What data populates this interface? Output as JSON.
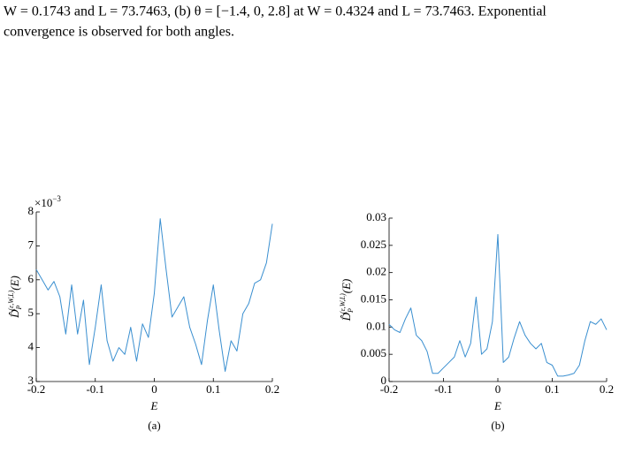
{
  "text_lines": [
    "W = 0.1743 and L = 73.7463, (b) θ = [−1.4, 0, 2.8] at W = 0.4324 and L = 73.7463. Exponential",
    "convergence is observed for both angles."
  ],
  "chart_data": [
    {
      "type": "line",
      "caption": "(a)",
      "xlabel": "E",
      "ylabel": {
        "base": "D̂",
        "sub": "P",
        "sup": "(ε,W,L)",
        "tail": "(E)"
      },
      "y_multiplier": {
        "base": "×10",
        "exponent": "−3"
      },
      "x": [
        -0.2,
        -0.19,
        -0.18,
        -0.17,
        -0.16,
        -0.15,
        -0.14,
        -0.13,
        -0.12,
        -0.11,
        -0.1,
        -0.09,
        -0.08,
        -0.07,
        -0.06,
        -0.05,
        -0.04,
        -0.03,
        -0.02,
        -0.01,
        0,
        0.01,
        0.02,
        0.03,
        0.04,
        0.05,
        0.06,
        0.07,
        0.08,
        0.09,
        0.1,
        0.11,
        0.12,
        0.13,
        0.14,
        0.15,
        0.16,
        0.17,
        0.18,
        0.19,
        0.2
      ],
      "series": [
        {
          "color": "#3a8fd0",
          "values": [
            6.3,
            6.0,
            5.7,
            5.95,
            5.5,
            4.4,
            5.85,
            4.4,
            5.4,
            3.5,
            4.6,
            5.85,
            4.2,
            3.6,
            4.0,
            3.8,
            4.6,
            3.6,
            4.7,
            4.3,
            5.6,
            7.8,
            6.3,
            4.9,
            5.2,
            5.5,
            4.6,
            4.1,
            3.5,
            4.8,
            5.85,
            4.5,
            3.3,
            4.2,
            3.9,
            5.0,
            5.3,
            5.9,
            6.0,
            6.5,
            7.65
          ]
        }
      ],
      "xlim": [
        -0.2,
        0.2
      ],
      "xticks": [
        -0.2,
        -0.1,
        0,
        0.1,
        0.2
      ],
      "ylim": [
        3,
        8
      ],
      "yticks": [
        3,
        4,
        5,
        6,
        7,
        8
      ]
    },
    {
      "type": "line",
      "caption": "(b)",
      "xlabel": "E",
      "ylabel": {
        "base": "D̂",
        "sub": "P",
        "sup": "(ε,W,L)",
        "tail": "(E)"
      },
      "x": [
        -0.2,
        -0.19,
        -0.18,
        -0.17,
        -0.16,
        -0.15,
        -0.14,
        -0.13,
        -0.12,
        -0.11,
        -0.1,
        -0.09,
        -0.08,
        -0.07,
        -0.06,
        -0.05,
        -0.04,
        -0.03,
        -0.02,
        -0.01,
        0,
        0.01,
        0.02,
        0.03,
        0.04,
        0.05,
        0.06,
        0.07,
        0.08,
        0.09,
        0.1,
        0.11,
        0.12,
        0.13,
        0.14,
        0.15,
        0.16,
        0.17,
        0.18,
        0.19,
        0.2
      ],
      "series": [
        {
          "color": "#3a8fd0",
          "values": [
            0.0105,
            0.0095,
            0.009,
            0.0115,
            0.0135,
            0.0085,
            0.0075,
            0.0055,
            0.0015,
            0.0015,
            0.0025,
            0.0035,
            0.0045,
            0.0075,
            0.0045,
            0.007,
            0.0155,
            0.005,
            0.006,
            0.011,
            0.027,
            0.0035,
            0.0045,
            0.008,
            0.011,
            0.0085,
            0.007,
            0.006,
            0.007,
            0.0035,
            0.003,
            0.001,
            0.001,
            0.0012,
            0.0015,
            0.003,
            0.0075,
            0.011,
            0.0105,
            0.0115,
            0.0095
          ]
        }
      ],
      "xlim": [
        -0.2,
        0.2
      ],
      "xticks": [
        -0.2,
        -0.1,
        0,
        0.1,
        0.2
      ],
      "ylim": [
        0,
        0.03
      ],
      "yticks": [
        0,
        0.005,
        0.01,
        0.015,
        0.02,
        0.025,
        0.03
      ]
    }
  ]
}
